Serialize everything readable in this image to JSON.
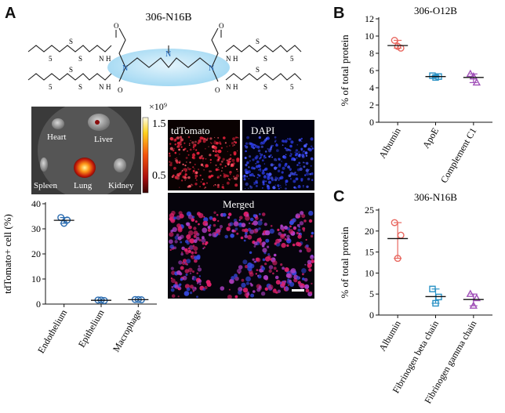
{
  "panels": {
    "a": {
      "letter": "A",
      "molecule": {
        "title": "306-N16B",
        "tail_repeat": "5",
        "amide_o": "O",
        "amide_nh": "N",
        "amide_h": "H",
        "sulfur": "S",
        "core_n": "N"
      },
      "imaging": {
        "organs": [
          "Heart",
          "Liver",
          "Spleen",
          "Lung",
          "Kidney"
        ],
        "colorbar_unit": "×10⁹",
        "colorbar_max": "1.5",
        "colorbar_min": "0.5"
      },
      "microscopy": {
        "tdtomato_label": "tdTomato",
        "dapi_label": "DAPI",
        "merged_label": "Merged"
      }
    },
    "b": {
      "letter": "B"
    },
    "c": {
      "letter": "C"
    }
  },
  "chart_data": [
    {
      "id": "A-cells",
      "type": "scatter",
      "title": "",
      "xlabel": "",
      "ylabel": "tdTomato+ cell (%)",
      "ylim": [
        0,
        40
      ],
      "yticks": [
        "0",
        "10",
        "20",
        "30",
        "40"
      ],
      "categories": [
        "Endothelium",
        "Epithelium",
        "Macrophage"
      ],
      "points": [
        [
          34.5,
          33.5,
          32.2
        ],
        [
          1.6,
          1.4,
          1.6
        ],
        [
          1.8,
          1.7,
          1.8
        ]
      ],
      "means": [
        33.4,
        1.5,
        1.75
      ],
      "colors": [
        "#2b6cb0",
        "#2b6cb0",
        "#2b6cb0"
      ]
    },
    {
      "id": "B",
      "type": "scatter",
      "title": "306-O12B",
      "xlabel": "",
      "ylabel": "% of total protein",
      "ylim": [
        0,
        12
      ],
      "yticks": [
        "0",
        "2",
        "4",
        "6",
        "8",
        "10",
        "12"
      ],
      "categories": [
        "Albumin",
        "ApoE",
        "Complement C1"
      ],
      "points": [
        [
          9.5,
          8.6,
          8.8
        ],
        [
          5.4,
          5.3,
          5.2
        ],
        [
          5.6,
          4.6,
          5.3
        ]
      ],
      "means": [
        8.9,
        5.3,
        5.2
      ],
      "markers": [
        "circle",
        "square",
        "triangle"
      ],
      "colors": [
        "#e8675f",
        "#2b92c5",
        "#a04fb8"
      ]
    },
    {
      "id": "C",
      "type": "scatter",
      "title": "306-N16B",
      "xlabel": "",
      "ylabel": "% of total protein",
      "ylim": [
        0,
        25
      ],
      "yticks": [
        "0",
        "5",
        "10",
        "15",
        "20",
        "25"
      ],
      "categories": [
        "Albumin",
        "Fibrinogen beta chain",
        "Fibrinogen gamma chain"
      ],
      "points": [
        [
          22.0,
          19.0,
          13.5
        ],
        [
          6.2,
          4.3,
          2.8
        ],
        [
          5.0,
          4.0,
          2.2
        ]
      ],
      "means": [
        18.2,
        4.4,
        3.7
      ],
      "markers": [
        "circle",
        "square",
        "triangle"
      ],
      "colors": [
        "#e8675f",
        "#2b92c5",
        "#a04fb8"
      ]
    }
  ]
}
